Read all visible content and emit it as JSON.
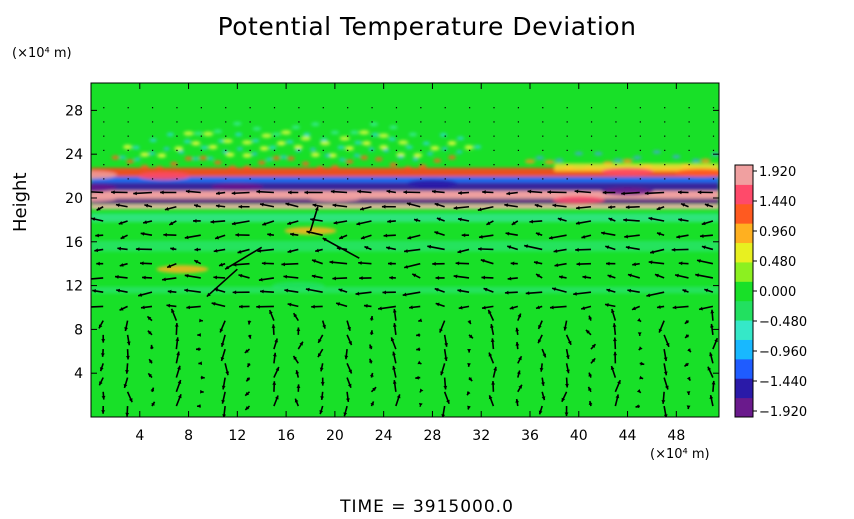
{
  "chart_data": {
    "type": "heatmap",
    "title": "Potential Temperature Deviation",
    "ylabel": "Height",
    "xlabel": "",
    "x_unit": "(×10⁴ m)",
    "y_unit": "(×10⁴ m)",
    "xlim": [
      0,
      51.5
    ],
    "ylim": [
      0,
      30.5
    ],
    "x_ticks": [
      4,
      8,
      12,
      16,
      20,
      24,
      28,
      32,
      36,
      40,
      44,
      48
    ],
    "y_ticks": [
      4,
      8,
      12,
      16,
      20,
      24,
      28
    ],
    "colorbar": {
      "labels": [
        "1.920",
        "1.440",
        "0.960",
        "0.480",
        "0.000",
        "−0.480",
        "−0.960",
        "−1.440",
        "−1.920"
      ],
      "range": [
        -1.92,
        1.92
      ],
      "colors": [
        "#6a1a8c",
        "#2a1aa8",
        "#1f5cff",
        "#18b8ff",
        "#35e8c8",
        "#22e060",
        "#18e028",
        "#8cf020",
        "#e8f020",
        "#ffb020",
        "#ff5a20",
        "#ff4a6a",
        "#f0a0a0"
      ]
    },
    "background_value": 0.0,
    "series": [
      {
        "kind": "anomaly_bands",
        "points": [
          {
            "x": 0,
            "y": 22.1,
            "value": 1.7
          },
          {
            "x": 6,
            "y": 22.0,
            "value": 1.4
          },
          {
            "x": 44,
            "y": 22.4,
            "value": 1.6
          },
          {
            "x": 50,
            "y": 22.3,
            "value": 1.2
          },
          {
            "x": 0,
            "y": 20.9,
            "value": -1.9
          },
          {
            "x": 12,
            "y": 21.0,
            "value": -1.7
          },
          {
            "x": 28,
            "y": 21.3,
            "value": -1.5
          },
          {
            "x": 44,
            "y": 20.6,
            "value": -1.8
          },
          {
            "x": 0,
            "y": 20.0,
            "value": 1.9
          },
          {
            "x": 20,
            "y": 20.0,
            "value": 1.7
          },
          {
            "x": 40,
            "y": 19.8,
            "value": 1.6
          },
          {
            "x": 18,
            "y": 17.0,
            "value": 0.9
          },
          {
            "x": 7.5,
            "y": 13.5,
            "value": 0.8
          },
          {
            "x": 17,
            "y": 12.0,
            "value": -0.4
          }
        ]
      }
    ],
    "vectors": {
      "type": "wind",
      "color": "#000000"
    }
  },
  "time_label": "TIME = 3915000.0"
}
